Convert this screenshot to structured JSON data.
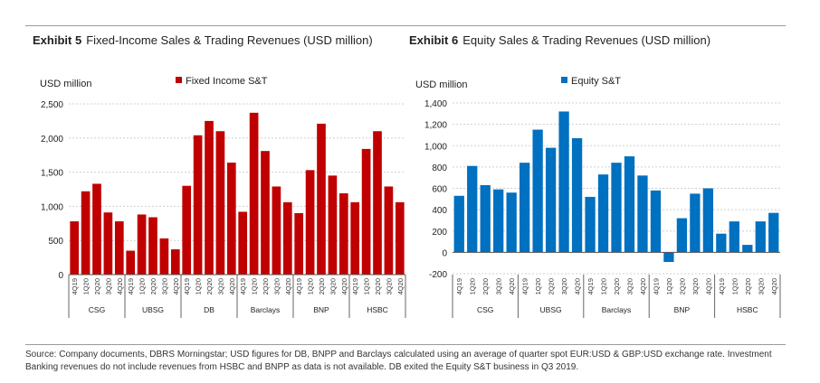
{
  "exhibits": [
    {
      "number": "Exhibit 5",
      "title": "Fixed-Income Sales & Trading Revenues (USD million)"
    },
    {
      "number": "Exhibit 6",
      "title": "Equity Sales & Trading Revenues  (USD million)"
    }
  ],
  "colors": {
    "fixed_income": "#c00000",
    "equity": "#0070c0",
    "grid": "#d0d0d0",
    "axis": "#666666"
  },
  "chart_data": [
    {
      "type": "bar",
      "title": "Fixed-Income Sales & Trading Revenues (USD million)",
      "ylabel": "USD million",
      "legend": "Fixed Income S&T",
      "legend_position": "top-center",
      "ylim": [
        0,
        2500
      ],
      "yticks": [
        0,
        500,
        1000,
        1500,
        2000,
        2500
      ],
      "ytick_labels": [
        "0",
        "500",
        "1,000",
        "1,500",
        "2,000",
        "2,500"
      ],
      "categories": [
        "4Q19",
        "1Q20",
        "2Q20",
        "3Q20",
        "4Q20",
        "4Q19",
        "1Q20",
        "2Q20",
        "3Q20",
        "4Q20",
        "4Q19",
        "1Q20",
        "2Q20",
        "3Q20",
        "4Q20",
        "4Q19",
        "1Q20",
        "2Q20",
        "3Q20",
        "4Q20",
        "4Q19",
        "1Q20",
        "2Q20",
        "3Q20",
        "4Q20",
        "4Q19",
        "1Q20",
        "2Q20",
        "3Q20",
        "4Q20"
      ],
      "values": [
        780,
        1220,
        1330,
        910,
        780,
        350,
        880,
        840,
        530,
        370,
        1300,
        2040,
        2250,
        2100,
        1640,
        920,
        2370,
        1810,
        1290,
        1060,
        900,
        1530,
        2210,
        1450,
        1190,
        1060,
        1840,
        2100,
        1290,
        1060
      ],
      "groups": [
        {
          "name": "CSG",
          "count": 5
        },
        {
          "name": "UBSG",
          "count": 5
        },
        {
          "name": "DB",
          "count": 5
        },
        {
          "name": "Barclays",
          "count": 5
        },
        {
          "name": "BNP",
          "count": 5
        },
        {
          "name": "HSBC",
          "count": 5
        }
      ],
      "grid": true
    },
    {
      "type": "bar",
      "title": "Equity Sales & Trading Revenues  (USD million)",
      "ylabel": "USD million",
      "legend": "Equity S&T",
      "legend_position": "top-center",
      "ylim": [
        -200,
        1400
      ],
      "yticks": [
        -200,
        0,
        200,
        400,
        600,
        800,
        1000,
        1200,
        1400
      ],
      "ytick_labels": [
        "-200",
        "0",
        "200",
        "400",
        "600",
        "800",
        "1,000",
        "1,200",
        "1,400"
      ],
      "categories": [
        "4Q19",
        "1Q20",
        "2Q20",
        "3Q20",
        "4Q20",
        "4Q19",
        "1Q20",
        "2Q20",
        "3Q20",
        "4Q20",
        "4Q19",
        "1Q20",
        "2Q20",
        "3Q20",
        "4Q20",
        "4Q19",
        "1Q20",
        "2Q20",
        "3Q20",
        "4Q20",
        "4Q19",
        "1Q20",
        "2Q20",
        "3Q20",
        "4Q20"
      ],
      "values": [
        530,
        810,
        630,
        590,
        560,
        840,
        1150,
        980,
        1320,
        1070,
        520,
        730,
        840,
        900,
        720,
        580,
        -90,
        320,
        550,
        600,
        175,
        290,
        70,
        290,
        370
      ],
      "groups": [
        {
          "name": "CSG",
          "count": 5
        },
        {
          "name": "UBSG",
          "count": 5
        },
        {
          "name": "Barclays",
          "count": 5
        },
        {
          "name": "BNP",
          "count": 5
        },
        {
          "name": "HSBC",
          "count": 5
        }
      ],
      "grid": true
    }
  ],
  "source_text": "Source: Company documents, DBRS Morningstar; USD figures for DB, BNPP and Barclays calculated using an average of quarter spot EUR:USD & GBP:USD exchange rate. Investment Banking revenues do not include revenues from HSBC and BNPP as data is not available. DB exited the Equity S&T business in Q3 2019."
}
